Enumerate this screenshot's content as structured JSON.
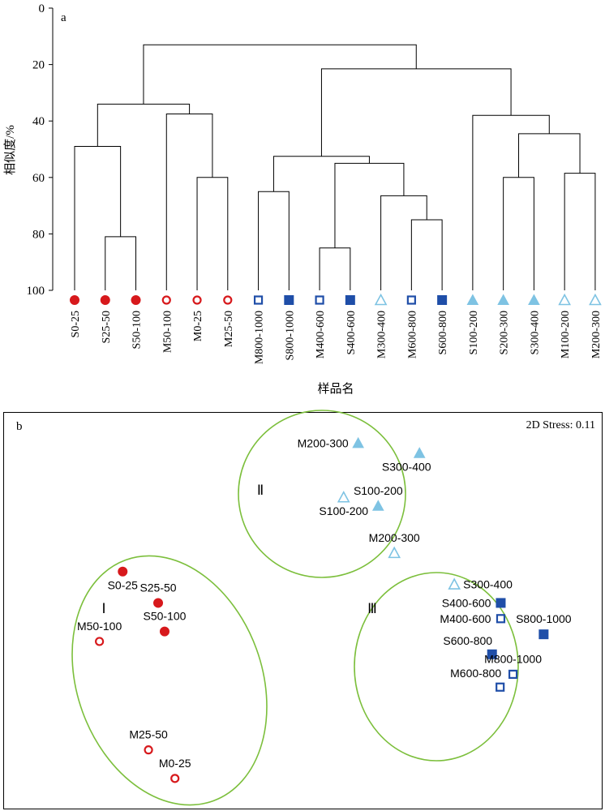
{
  "chart_data": [
    {
      "type": "dendrogram",
      "panel_label": "a",
      "ylabel": "相似度/%",
      "xlabel": "样品名",
      "ylim": [
        0,
        100
      ],
      "y_ticks": [
        "0",
        "20",
        "40",
        "60",
        "80",
        "100"
      ],
      "y_tick_values": [
        0,
        20,
        40,
        60,
        80,
        100
      ],
      "leaves": [
        {
          "label": "S0-25",
          "marker": "filled-circle",
          "color": "#d7191c"
        },
        {
          "label": "S25-50",
          "marker": "filled-circle",
          "color": "#d7191c"
        },
        {
          "label": "S50-100",
          "marker": "filled-circle",
          "color": "#d7191c"
        },
        {
          "label": "M50-100",
          "marker": "open-circle",
          "color": "#d7191c"
        },
        {
          "label": "M0-25",
          "marker": "open-circle",
          "color": "#d7191c"
        },
        {
          "label": "M25-50",
          "marker": "open-circle",
          "color": "#d7191c"
        },
        {
          "label": "M800-1000",
          "marker": "open-square",
          "color": "#1f4ea8"
        },
        {
          "label": "S800-1000",
          "marker": "filled-square",
          "color": "#1f4ea8"
        },
        {
          "label": "M400-600",
          "marker": "open-square",
          "color": "#1f4ea8"
        },
        {
          "label": "S400-600",
          "marker": "filled-square",
          "color": "#1f4ea8"
        },
        {
          "label": "M300-400",
          "marker": "open-triangle",
          "color": "#7ec3e3"
        },
        {
          "label": "M600-800",
          "marker": "open-square",
          "color": "#1f4ea8"
        },
        {
          "label": "S600-800",
          "marker": "filled-square",
          "color": "#1f4ea8"
        },
        {
          "label": "S100-200",
          "marker": "filled-triangle",
          "color": "#7ec3e3"
        },
        {
          "label": "S200-300",
          "marker": "filled-triangle",
          "color": "#7ec3e3"
        },
        {
          "label": "S300-400",
          "marker": "filled-triangle",
          "color": "#7ec3e3"
        },
        {
          "label": "M100-200",
          "marker": "open-triangle",
          "color": "#7ec3e3"
        },
        {
          "label": "M200-300",
          "marker": "open-triangle",
          "color": "#7ec3e3"
        }
      ],
      "merges": [
        {
          "a": "L1",
          "b": "L2",
          "level": 81
        },
        {
          "a": "L0",
          "b": "N0",
          "level": 49
        },
        {
          "a": "L4",
          "b": "L5",
          "level": 60
        },
        {
          "a": "L3",
          "b": "N2",
          "level": 37.5
        },
        {
          "a": "N1",
          "b": "N3",
          "level": 34
        },
        {
          "a": "L6",
          "b": "L7",
          "level": 65
        },
        {
          "a": "L8",
          "b": "L9",
          "level": 85
        },
        {
          "a": "L11",
          "b": "L12",
          "level": 75
        },
        {
          "a": "L10",
          "b": "N7",
          "level": 66.5
        },
        {
          "a": "N6",
          "b": "N8",
          "level": 55
        },
        {
          "a": "N5",
          "b": "N9",
          "level": 52.5
        },
        {
          "a": "L14",
          "b": "L15",
          "level": 60
        },
        {
          "a": "L16",
          "b": "L17",
          "level": 58.5
        },
        {
          "a": "N11",
          "b": "N12",
          "level": 44.5
        },
        {
          "a": "L13",
          "b": "N13",
          "level": 38
        },
        {
          "a": "N10",
          "b": "N14",
          "level": 21.5
        },
        {
          "a": "N4",
          "b": "N15",
          "level": 13
        }
      ]
    },
    {
      "type": "scatter",
      "panel_label": "b",
      "stress_label": "2D Stress: 0.11",
      "points": [
        {
          "label": "M200-300",
          "marker": "filled-triangle",
          "color": "#7ec3e3",
          "x": 4.1,
          "y": 9.45,
          "label_side": "left"
        },
        {
          "label": "S300-400",
          "marker": "filled-triangle",
          "color": "#7ec3e3",
          "x": 6.0,
          "y": 9.1,
          "label_side": "below-left"
        },
        {
          "label": "S100-200",
          "marker": "open-triangle",
          "color": "#7ec3e3",
          "x": 3.65,
          "y": 7.55,
          "label_side": "below"
        },
        {
          "label": "S100-200",
          "marker": "filled-triangle",
          "color": "#7ec3e3",
          "x": 4.72,
          "y": 7.25,
          "label_side": "above"
        },
        {
          "label": "M200-300",
          "marker": "open-triangle",
          "color": "#7ec3e3",
          "x": 5.22,
          "y": 5.6,
          "label_side": "above"
        },
        {
          "label": "S300-400",
          "marker": "open-triangle",
          "color": "#7ec3e3",
          "x": 7.08,
          "y": 4.5,
          "label_side": "right"
        },
        {
          "label": "S0-25",
          "marker": "filled-circle",
          "color": "#d7191c",
          "x": -3.2,
          "y": 4.95,
          "label_side": "below"
        },
        {
          "label": "S25-50",
          "marker": "filled-circle",
          "color": "#d7191c",
          "x": -2.1,
          "y": 3.85,
          "label_side": "above"
        },
        {
          "label": "S50-100",
          "marker": "filled-circle",
          "color": "#d7191c",
          "x": -1.9,
          "y": 2.85,
          "label_side": "above"
        },
        {
          "label": "M50-100",
          "marker": "open-circle",
          "color": "#d7191c",
          "x": -3.92,
          "y": 2.5,
          "label_side": "above"
        },
        {
          "label": "M25-50",
          "marker": "open-circle",
          "color": "#d7191c",
          "x": -2.4,
          "y": -1.3,
          "label_side": "above"
        },
        {
          "label": "M0-25",
          "marker": "open-circle",
          "color": "#d7191c",
          "x": -1.58,
          "y": -2.3,
          "label_side": "above"
        },
        {
          "label": "S400-600",
          "marker": "filled-square",
          "color": "#1f4ea8",
          "x": 8.52,
          "y": 3.85,
          "label_side": "left"
        },
        {
          "label": "M400-600",
          "marker": "open-square",
          "color": "#1f4ea8",
          "x": 8.52,
          "y": 3.3,
          "label_side": "left"
        },
        {
          "label": "S800-1000",
          "marker": "filled-square",
          "color": "#1f4ea8",
          "x": 9.85,
          "y": 2.75,
          "label_side": "above"
        },
        {
          "label": "S600-800",
          "marker": "filled-square",
          "color": "#1f4ea8",
          "x": 8.25,
          "y": 2.05,
          "label_side": "above-left"
        },
        {
          "label": "M800-1000",
          "marker": "open-square",
          "color": "#1f4ea8",
          "x": 8.9,
          "y": 1.35,
          "label_side": "above"
        },
        {
          "label": "M600-800",
          "marker": "open-square",
          "color": "#1f4ea8",
          "x": 8.5,
          "y": 0.9,
          "label_side": "above-left"
        }
      ],
      "groups": [
        {
          "label": "Ⅱ",
          "members": [
            "M200-300",
            "S300-400",
            "S100-200",
            "S100-200",
            "M200-300"
          ]
        },
        {
          "label": "Ⅰ",
          "members": [
            "S0-25",
            "S25-50",
            "S50-100",
            "M50-100",
            "M25-50",
            "M0-25"
          ]
        },
        {
          "label": "Ⅲ",
          "members": [
            "S300-400",
            "S400-600",
            "M400-600",
            "S800-1000",
            "S600-800",
            "M800-1000",
            "M600-800"
          ]
        }
      ],
      "group_outline_color": "#7cbf3c"
    }
  ]
}
